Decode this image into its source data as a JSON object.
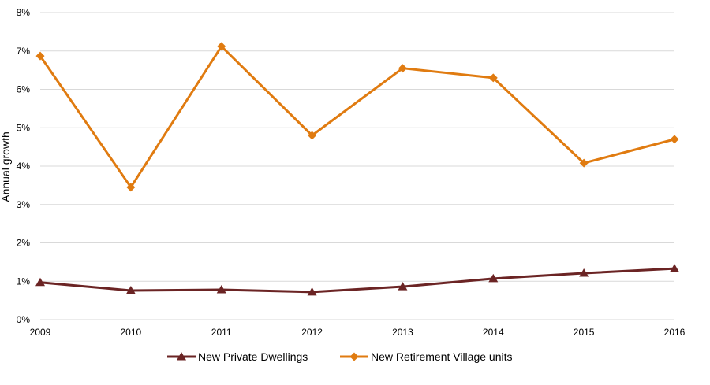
{
  "chart_data": {
    "type": "line",
    "title": "",
    "xlabel": "",
    "ylabel": "Annual growth",
    "x": [
      "2009",
      "2010",
      "2011",
      "2012",
      "2013",
      "2014",
      "2015",
      "2016"
    ],
    "ylim": [
      0,
      8
    ],
    "yticks": [
      "0%",
      "1%",
      "2%",
      "3%",
      "4%",
      "5%",
      "6%",
      "7%",
      "8%"
    ],
    "grid": "horizontal",
    "legend_position": "bottom",
    "series": [
      {
        "name": "New Private Dwellings",
        "values": [
          0.97,
          0.76,
          0.78,
          0.72,
          0.86,
          1.07,
          1.21,
          1.33
        ],
        "color": "#6b2424",
        "marker": "triangle"
      },
      {
        "name": "New Retirement Village units",
        "values": [
          6.87,
          3.45,
          7.12,
          4.8,
          6.55,
          6.3,
          4.08,
          4.7
        ],
        "color": "#e07b10",
        "marker": "diamond"
      }
    ]
  }
}
